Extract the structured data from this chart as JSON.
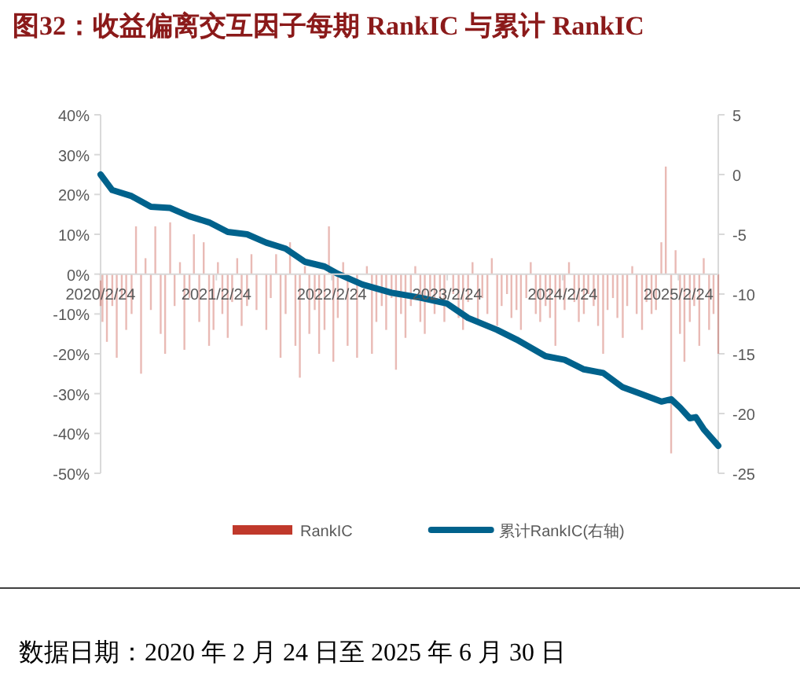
{
  "chart_data": {
    "type": "bar",
    "title": "图32：收益偏离交互因子每期 RankIC 与累计 RankIC",
    "annotations": [
      "数据日期：2020 年 2 月 24 日至 2025 年 6 月 30 日"
    ],
    "xlim": [
      "2020-02-24",
      "2025-06-30"
    ],
    "xticks": [
      {
        "value": "2020-02-24",
        "label": "2020/2/24"
      },
      {
        "value": "2021-02-24",
        "label": "2021/2/24"
      },
      {
        "value": "2022-02-24",
        "label": "2022/2/24"
      },
      {
        "value": "2023-02-24",
        "label": "2023/2/24"
      },
      {
        "value": "2024-02-24",
        "label": "2024/2/24"
      },
      {
        "value": "2025-02-24",
        "label": "2025/2/24"
      }
    ],
    "ylim": [
      -50,
      40
    ],
    "yticks": [
      {
        "value": 40,
        "label": "40%"
      },
      {
        "value": 30,
        "label": "30%"
      },
      {
        "value": 20,
        "label": "20%"
      },
      {
        "value": 10,
        "label": "10%"
      },
      {
        "value": 0,
        "label": "0%"
      },
      {
        "value": -10,
        "label": "-10%"
      },
      {
        "value": -20,
        "label": "-20%"
      },
      {
        "value": -30,
        "label": "-30%"
      },
      {
        "value": -40,
        "label": "-40%"
      },
      {
        "value": -50,
        "label": "-50%"
      }
    ],
    "y2lim": [
      -25,
      5
    ],
    "y2ticks": [
      5,
      0,
      -5,
      -10,
      -15,
      -20,
      -25
    ],
    "legend": "bottom",
    "series": [
      {
        "name": "RankIC",
        "color": "#c0392b",
        "x": [
          "2020-02-24",
          "2020-03-01",
          "2020-03-15",
          "2020-04-01",
          "2020-04-15",
          "2020-05-01",
          "2020-05-15",
          "2020-06-01",
          "2020-06-15",
          "2020-07-01",
          "2020-07-15",
          "2020-08-01",
          "2020-08-15",
          "2020-09-01",
          "2020-09-15",
          "2020-10-01",
          "2020-10-15",
          "2020-11-01",
          "2020-11-15",
          "2020-12-01",
          "2020-12-15",
          "2021-01-01",
          "2021-01-15",
          "2021-02-01",
          "2021-02-15",
          "2021-03-01",
          "2021-03-15",
          "2021-04-01",
          "2021-04-15",
          "2021-05-01",
          "2021-05-15",
          "2021-06-01",
          "2021-06-15",
          "2021-07-01",
          "2021-08-01",
          "2021-08-15",
          "2021-09-01",
          "2021-09-15",
          "2021-10-01",
          "2021-10-15",
          "2021-11-01",
          "2021-11-15",
          "2021-12-01",
          "2021-12-15",
          "2022-01-01",
          "2022-01-15",
          "2022-02-01",
          "2022-02-15",
          "2022-03-01",
          "2022-03-15",
          "2022-04-01",
          "2022-04-15",
          "2022-05-15",
          "2022-06-15",
          "2022-07-01",
          "2022-07-15",
          "2022-08-01",
          "2022-08-15",
          "2022-09-01",
          "2022-09-15",
          "2022-10-01",
          "2022-10-15",
          "2022-11-01",
          "2022-11-15",
          "2022-12-01",
          "2022-12-15",
          "2023-01-01",
          "2023-01-15",
          "2023-02-01",
          "2023-02-15",
          "2023-03-15",
          "2023-04-01",
          "2023-04-15",
          "2023-05-01",
          "2023-05-15",
          "2023-06-01",
          "2023-06-15",
          "2023-07-01",
          "2023-07-15",
          "2023-08-01",
          "2023-08-15",
          "2023-09-01",
          "2023-09-15",
          "2023-10-01",
          "2023-10-15",
          "2023-11-01",
          "2023-11-15",
          "2023-12-01",
          "2023-12-15",
          "2024-01-01",
          "2024-01-15",
          "2024-02-01",
          "2024-02-15",
          "2024-03-01",
          "2024-03-15",
          "2024-04-01",
          "2024-04-15",
          "2024-05-01",
          "2024-05-15",
          "2024-06-01",
          "2024-06-15",
          "2024-07-01",
          "2024-07-15",
          "2024-08-01",
          "2024-08-15",
          "2024-09-01",
          "2024-09-15",
          "2024-10-01",
          "2024-10-15",
          "2024-11-01",
          "2024-11-15",
          "2024-12-01",
          "2024-12-15",
          "2025-01-01",
          "2025-01-15",
          "2025-02-01",
          "2025-02-15",
          "2025-03-01",
          "2025-03-15",
          "2025-04-01",
          "2025-04-15",
          "2025-05-01",
          "2025-05-15",
          "2025-06-01",
          "2025-06-15",
          "2025-06-30"
        ],
        "values": [
          -8,
          -12,
          -17,
          -8,
          -21,
          -6,
          -14,
          -10,
          12,
          -25,
          4,
          -9,
          12,
          -15,
          -20,
          13,
          -8,
          3,
          -19,
          -6,
          10,
          -12,
          8,
          -18,
          -14,
          3,
          -10,
          -16,
          -7,
          4,
          -13,
          -8,
          5,
          -9,
          -14,
          -6,
          5,
          -21,
          -10,
          8,
          -18,
          -26,
          2,
          -15,
          -9,
          -20,
          -14,
          12,
          -22,
          -11,
          3,
          -18,
          -21,
          2,
          -20,
          -12,
          -8,
          -14,
          -6,
          -24,
          -10,
          -16,
          -8,
          2,
          -12,
          -15,
          -7,
          -10,
          -6,
          -12,
          -5,
          -11,
          -14,
          -7,
          3,
          -12,
          -6,
          -10,
          4,
          -13,
          -8,
          -5,
          -11,
          -9,
          -14,
          -6,
          3,
          -10,
          -12,
          -8,
          -11,
          -18,
          -6,
          -9,
          3,
          -7,
          -12,
          -10,
          -5,
          -8,
          -13,
          -20,
          -9,
          -6,
          -11,
          -16,
          -8,
          2,
          -10,
          -14,
          -7,
          -10,
          -9,
          8,
          27,
          -45,
          6,
          -15,
          -22,
          -12,
          -8,
          -18,
          4,
          -14,
          -10,
          -20
        ]
      },
      {
        "name": "累计RankIC(右轴)",
        "type": "line",
        "axis": "y2",
        "color": "#00628c",
        "x": [
          "2020-02-24",
          "2020-04-01",
          "2020-06-01",
          "2020-08-01",
          "2020-10-01",
          "2020-12-01",
          "2021-02-01",
          "2021-04-01",
          "2021-06-01",
          "2021-08-01",
          "2021-10-01",
          "2021-12-01",
          "2022-02-01",
          "2022-03-15",
          "2022-06-01",
          "2022-09-01",
          "2022-12-01",
          "2023-02-24",
          "2023-05-01",
          "2023-08-01",
          "2023-10-01",
          "2024-01-01",
          "2024-03-01",
          "2024-05-01",
          "2024-07-01",
          "2024-09-01",
          "2024-11-01",
          "2025-01-01",
          "2025-02-01",
          "2025-03-01",
          "2025-04-01",
          "2025-04-20",
          "2025-05-15",
          "2025-06-30"
        ],
        "values": [
          0,
          -1.3,
          -1.8,
          -2.7,
          -2.8,
          -3.5,
          -4,
          -4.8,
          -5,
          -5.7,
          -6.2,
          -7.3,
          -7.7,
          -8.3,
          -9.2,
          -9.9,
          -10.3,
          -10.8,
          -12,
          -13,
          -13.8,
          -15.2,
          -15.5,
          -16.3,
          -16.6,
          -17.8,
          -18.4,
          -19,
          -18.8,
          -19.5,
          -20.4,
          -20.3,
          -21.3,
          -22.7
        ]
      }
    ]
  }
}
